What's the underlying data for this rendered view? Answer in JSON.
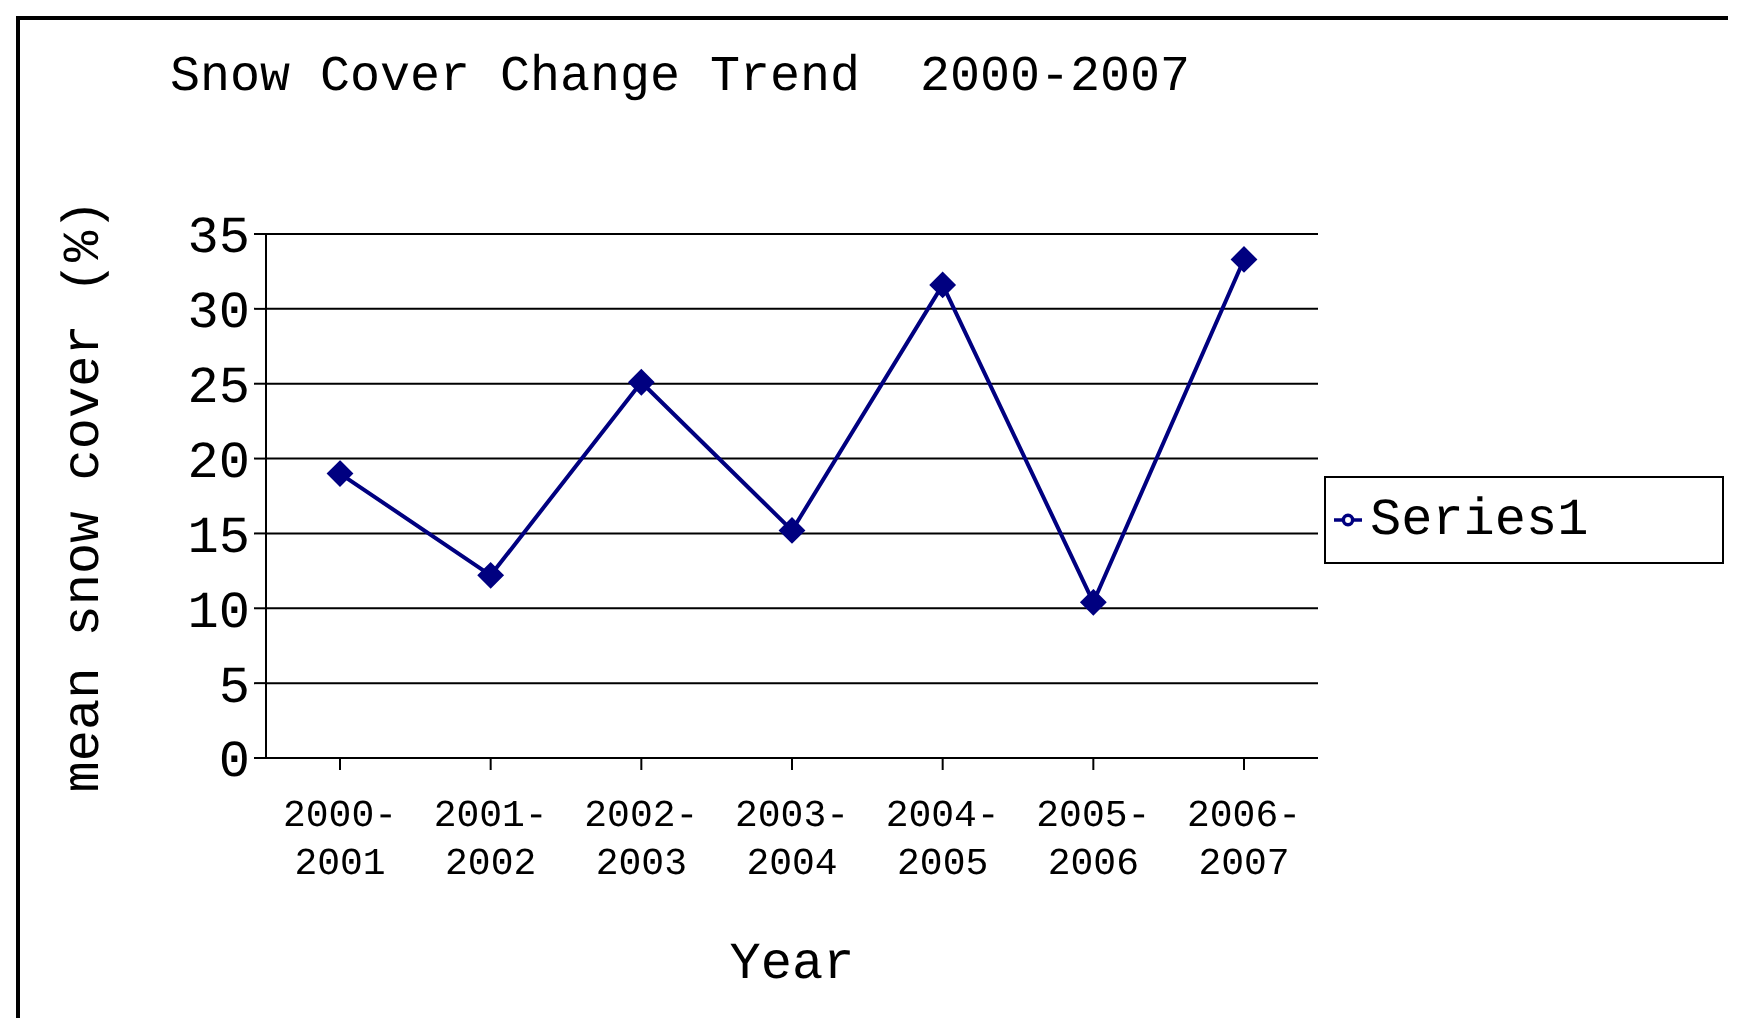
{
  "chart_data": {
    "type": "line",
    "title": "Snow Cover Change Trend  2000-2007",
    "xlabel": "Year",
    "ylabel": "mean snow cover (%)",
    "categories": [
      "2000-2001",
      "2001-2002",
      "2002-2003",
      "2003-2004",
      "2004-2005",
      "2005-2006",
      "2006-2007"
    ],
    "series": [
      {
        "name": "Series1",
        "color": "#000080",
        "values": [
          19,
          12.2,
          25.1,
          15.2,
          31.6,
          10.4,
          33.3
        ]
      }
    ],
    "ylim": [
      0,
      35
    ],
    "yticks": [
      0,
      5,
      10,
      15,
      20,
      25,
      30,
      35
    ],
    "grid": "y",
    "legend": "right",
    "marker": "diamond"
  }
}
